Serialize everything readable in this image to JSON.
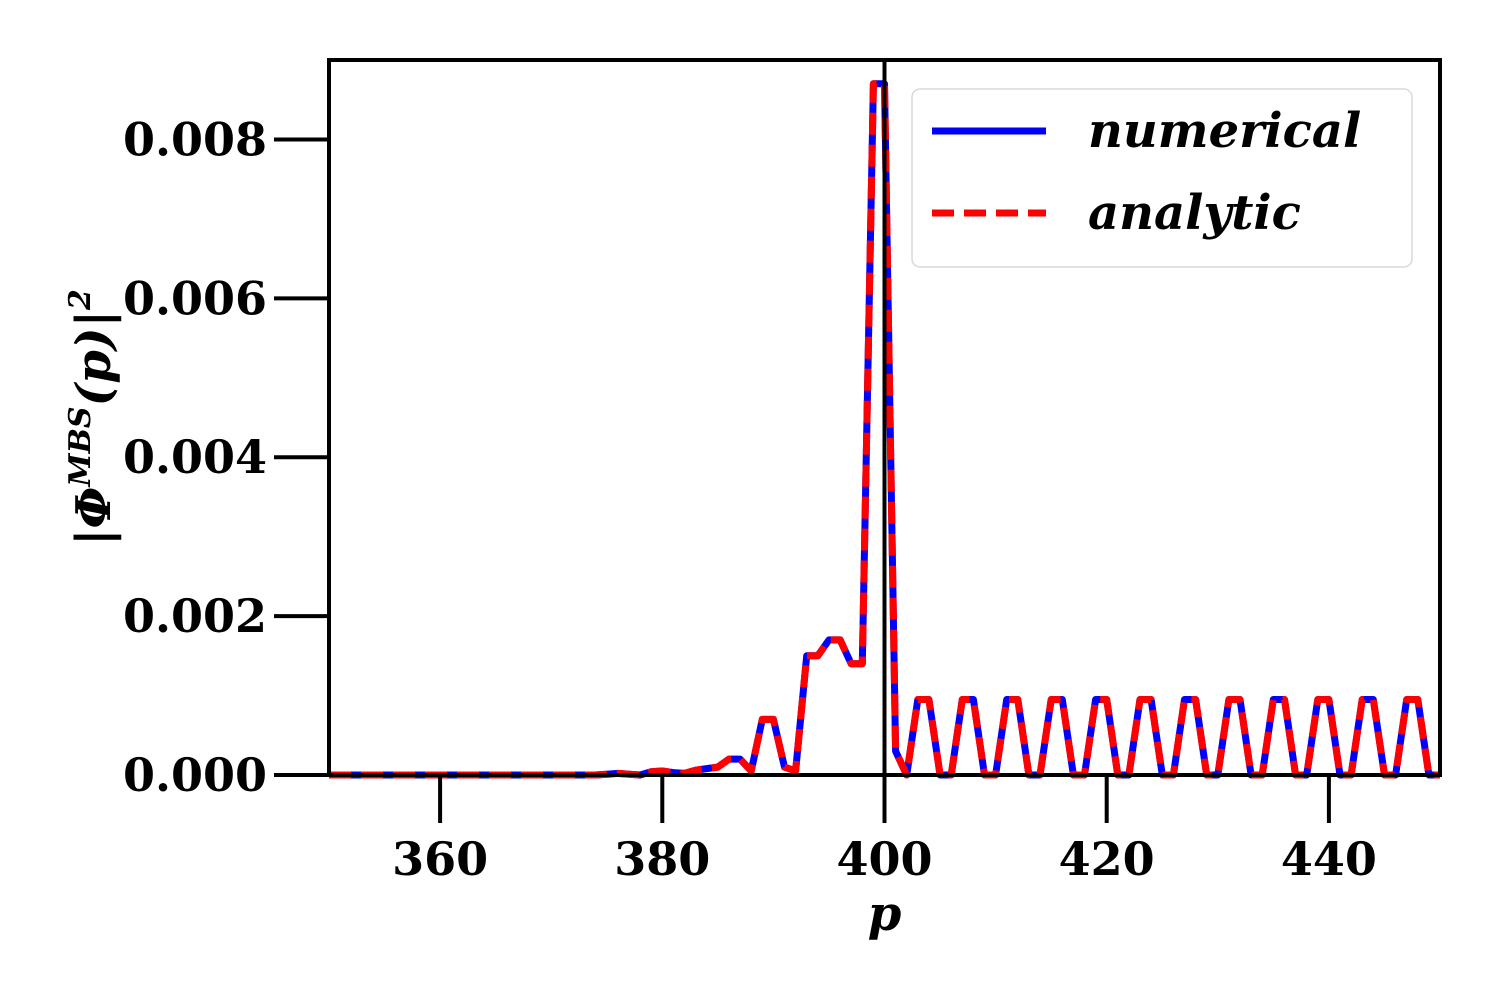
{
  "chart_data": {
    "type": "line",
    "title": "",
    "xlabel": "p",
    "ylabel": {
      "base": "|Φ",
      "superscript": "MBS",
      "rest": "(p)|",
      "exponent": "2"
    },
    "xlim": [
      350,
      450
    ],
    "ylim": [
      0,
      0.009
    ],
    "xticks": [
      360,
      380,
      400,
      420,
      440
    ],
    "xtick_labels": [
      "360",
      "380",
      "400",
      "420",
      "440"
    ],
    "yticks": [
      0,
      0.002,
      0.004,
      0.006,
      0.008
    ],
    "ytick_labels": [
      "0.000",
      "0.002",
      "0.004",
      "0.006",
      "0.008"
    ],
    "vline_x": 400,
    "grid": false,
    "legend_position": "top-right",
    "series": [
      {
        "name": "numerical",
        "color": "#0000ff",
        "style": "solid",
        "x": [
          350,
          352,
          354,
          356,
          358,
          360,
          362,
          364,
          366,
          368,
          370,
          372,
          374,
          375,
          376,
          377,
          378,
          379,
          380,
          381,
          382,
          383,
          384,
          385,
          386,
          387,
          388,
          389,
          390,
          391,
          392,
          393,
          394,
          395,
          396,
          397,
          398,
          399,
          400,
          401,
          402,
          403,
          404,
          405,
          406,
          407,
          408,
          409,
          410,
          411,
          412,
          413,
          414,
          415,
          416,
          417,
          418,
          419,
          420,
          421,
          422,
          423,
          424,
          425,
          426,
          427,
          428,
          429,
          430,
          431,
          432,
          433,
          434,
          435,
          436,
          437,
          438,
          439,
          440,
          441,
          442,
          443,
          444,
          445,
          446,
          447,
          448,
          449,
          450
        ],
        "y": [
          0,
          0,
          0,
          0,
          0,
          0,
          0,
          0,
          0,
          0,
          0,
          0,
          0,
          1e-05,
          2e-05,
          1e-05,
          0,
          4e-05,
          5e-05,
          3e-05,
          2e-05,
          6e-05,
          8e-05,
          0.0001,
          0.0002,
          0.0002,
          5e-05,
          0.0007,
          0.0007,
          0.0001,
          5e-05,
          0.0015,
          0.0015,
          0.0017,
          0.0017,
          0.0014,
          0.0014,
          0.0087,
          0.0087,
          0.0003,
          0,
          0.00095,
          0.00095,
          0,
          0,
          0.00095,
          0.00095,
          0,
          0,
          0.00095,
          0.00095,
          0,
          0,
          0.00095,
          0.00095,
          0,
          0,
          0.00095,
          0.00095,
          0,
          0,
          0.00095,
          0.00095,
          0,
          0,
          0.00095,
          0.00095,
          0,
          0,
          0.00095,
          0.00095,
          0,
          0,
          0.00095,
          0.00095,
          0,
          0,
          0.00095,
          0.00095,
          0,
          0,
          0.00095,
          0.00095,
          0,
          0,
          0.00095,
          0.00095,
          0,
          0
        ]
      },
      {
        "name": "analytic",
        "color": "#ff0000",
        "style": "dashed",
        "x": [
          350,
          352,
          354,
          356,
          358,
          360,
          362,
          364,
          366,
          368,
          370,
          372,
          374,
          375,
          376,
          377,
          378,
          379,
          380,
          381,
          382,
          383,
          384,
          385,
          386,
          387,
          388,
          389,
          390,
          391,
          392,
          393,
          394,
          395,
          396,
          397,
          398,
          399,
          400,
          401,
          402,
          403,
          404,
          405,
          406,
          407,
          408,
          409,
          410,
          411,
          412,
          413,
          414,
          415,
          416,
          417,
          418,
          419,
          420,
          421,
          422,
          423,
          424,
          425,
          426,
          427,
          428,
          429,
          430,
          431,
          432,
          433,
          434,
          435,
          436,
          437,
          438,
          439,
          440,
          441,
          442,
          443,
          444,
          445,
          446,
          447,
          448,
          449,
          450
        ],
        "y": [
          0,
          0,
          0,
          0,
          0,
          0,
          0,
          0,
          0,
          0,
          0,
          0,
          0,
          1e-05,
          2e-05,
          1e-05,
          0,
          4e-05,
          5e-05,
          3e-05,
          2e-05,
          6e-05,
          8e-05,
          0.0001,
          0.0002,
          0.0002,
          5e-05,
          0.0007,
          0.0007,
          0.0001,
          5e-05,
          0.0015,
          0.0015,
          0.0017,
          0.0017,
          0.0014,
          0.0014,
          0.0087,
          0.0087,
          0.0003,
          0,
          0.00095,
          0.00095,
          0,
          0,
          0.00095,
          0.00095,
          0,
          0,
          0.00095,
          0.00095,
          0,
          0,
          0.00095,
          0.00095,
          0,
          0,
          0.00095,
          0.00095,
          0,
          0,
          0.00095,
          0.00095,
          0,
          0,
          0.00095,
          0.00095,
          0,
          0,
          0.00095,
          0.00095,
          0,
          0,
          0.00095,
          0.00095,
          0,
          0,
          0.00095,
          0.00095,
          0,
          0,
          0.00095,
          0.00095,
          0,
          0,
          0.00095,
          0.00095,
          0,
          0
        ]
      }
    ]
  }
}
